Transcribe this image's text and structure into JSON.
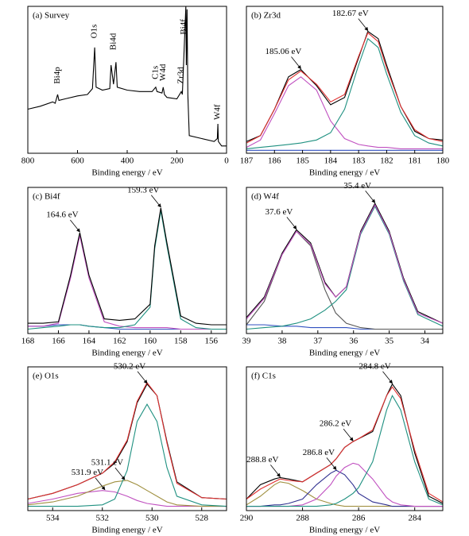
{
  "chart_data": [
    {
      "type": "line",
      "title": "(a) Survey",
      "xlabel": "Binding energy / eV",
      "xlim": [
        800,
        0
      ],
      "ylim": [
        0,
        100
      ],
      "xticks": [
        800,
        600,
        400,
        200,
        0
      ],
      "x": [
        800,
        750,
        700,
        690,
        680,
        675,
        650,
        600,
        560,
        540,
        531,
        525,
        500,
        470,
        465,
        455,
        445,
        440,
        400,
        350,
        300,
        285,
        280,
        260,
        255,
        250,
        240,
        200,
        182,
        178,
        164,
        162,
        159,
        156,
        150,
        100,
        50,
        37,
        35,
        33,
        20,
        0
      ],
      "series": [
        {
          "color": "#000000",
          "values": [
            30,
            32,
            35,
            34,
            40,
            36,
            37,
            39,
            40,
            44,
            72,
            45,
            43,
            44,
            60,
            47,
            62,
            45,
            43,
            42,
            42,
            45,
            42,
            41,
            45,
            40,
            38,
            37,
            42,
            40,
            100,
            60,
            98,
            40,
            12,
            10,
            8,
            10,
            20,
            8,
            5,
            5
          ]
        }
      ],
      "peak_labels": [
        {
          "text": "Bi4p",
          "x": 680,
          "y": 53
        },
        {
          "text": "O1s",
          "x": 531,
          "y": 83
        },
        {
          "text": "Bi4d",
          "x": 455,
          "y": 76
        },
        {
          "text": "C1s",
          "x": 285,
          "y": 55
        },
        {
          "text": "W4d",
          "x": 255,
          "y": 55
        },
        {
          "text": "Zr3d",
          "x": 182,
          "y": 53
        },
        {
          "text": "Bi4f",
          "x": 172,
          "y": 86
        },
        {
          "text": "W4f",
          "x": 35,
          "y": 28
        }
      ]
    },
    {
      "type": "line",
      "title": "(b) Zr3d",
      "xlabel": "Binding energy / eV",
      "xlim": [
        187,
        180
      ],
      "ylim": [
        0,
        100
      ],
      "xticks": [
        187,
        186,
        185,
        184,
        183,
        182,
        181,
        180
      ],
      "x": [
        187,
        186.5,
        186,
        185.5,
        185.06,
        184.5,
        184,
        183.5,
        183,
        182.67,
        182.3,
        182,
        181.5,
        181,
        180.5,
        180
      ],
      "series": [
        {
          "color": "#3050c0",
          "values": [
            2,
            2,
            2,
            2,
            2,
            2,
            2,
            2,
            2,
            2,
            2,
            2,
            2,
            2,
            2,
            2
          ]
        },
        {
          "color": "#c050c0",
          "values": [
            4,
            9,
            27,
            46,
            52,
            43,
            22,
            10,
            6,
            5,
            4,
            4,
            3,
            3,
            3,
            3
          ]
        },
        {
          "color": "#1e9080",
          "values": [
            3,
            4,
            5,
            6,
            7,
            9,
            14,
            30,
            60,
            78,
            72,
            54,
            28,
            12,
            7,
            5
          ]
        },
        {
          "color": "#000000",
          "values": [
            8,
            12,
            30,
            52,
            57,
            46,
            33,
            38,
            65,
            83,
            78,
            60,
            32,
            15,
            10,
            9
          ]
        },
        {
          "color": "#e03030",
          "values": [
            7,
            12,
            30,
            50,
            56,
            47,
            35,
            40,
            66,
            82,
            76,
            58,
            32,
            16,
            10,
            8
          ]
        }
      ],
      "annotations": [
        {
          "text": "185.06 eV",
          "x": 185.06,
          "y": 57
        },
        {
          "text": "182.67 eV",
          "x": 182.67,
          "y": 83
        }
      ]
    },
    {
      "type": "line",
      "title": "(c) Bi4f",
      "xlabel": "Binding energy / eV",
      "xlim": [
        168,
        155
      ],
      "ylim": [
        0,
        100
      ],
      "xticks": [
        168,
        166,
        164,
        162,
        160,
        158,
        156
      ],
      "x": [
        168,
        167,
        166,
        165.2,
        164.6,
        164,
        163,
        162,
        161,
        160,
        159.7,
        159.3,
        158.9,
        158,
        157,
        156,
        155
      ],
      "series": [
        {
          "color": "#3050c0",
          "values": [
            5,
            5,
            6,
            6,
            6,
            5,
            4,
            3,
            3,
            3,
            3,
            3,
            3,
            3,
            3,
            3,
            3
          ]
        },
        {
          "color": "#c050c0",
          "values": [
            5,
            5,
            7,
            38,
            67,
            38,
            8,
            5,
            4,
            4,
            4,
            4,
            4,
            3,
            3,
            3,
            3
          ]
        },
        {
          "color": "#1e9080",
          "values": [
            3,
            4,
            5,
            6,
            6,
            5,
            4,
            4,
            6,
            18,
            58,
            84,
            60,
            10,
            4,
            3,
            3
          ]
        },
        {
          "color": "#000000",
          "values": [
            7,
            7,
            8,
            40,
            69,
            40,
            10,
            9,
            10,
            20,
            60,
            86,
            62,
            12,
            7,
            6,
            6
          ]
        }
      ],
      "annotations": [
        {
          "text": "164.6 eV",
          "x": 164.6,
          "y": 69
        },
        {
          "text": "159.3 eV",
          "x": 159.3,
          "y": 86
        }
      ]
    },
    {
      "type": "line",
      "title": "(d) W4f",
      "xlabel": "Binding energy / eV",
      "xlim": [
        39,
        33.5
      ],
      "ylim": [
        0,
        100
      ],
      "xticks": [
        39,
        38,
        37,
        36,
        35,
        34
      ],
      "x": [
        39,
        38.5,
        38,
        37.6,
        37.2,
        36.8,
        36.5,
        36.2,
        35.8,
        35.4,
        35,
        34.6,
        34.2,
        33.5
      ],
      "series": [
        {
          "color": "#3050c0",
          "values": [
            6,
            6,
            5,
            5,
            4,
            4,
            4,
            4,
            3,
            3,
            3,
            3,
            3,
            3
          ]
        },
        {
          "color": "#555555",
          "values": [
            6,
            22,
            54,
            70,
            60,
            30,
            14,
            7,
            4,
            3,
            3,
            3,
            3,
            3
          ]
        },
        {
          "color": "#1e9080",
          "values": [
            3,
            4,
            5,
            7,
            10,
            16,
            22,
            30,
            68,
            87,
            68,
            36,
            13,
            5
          ]
        },
        {
          "color": "#000000",
          "values": [
            11,
            25,
            55,
            71,
            62,
            35,
            25,
            32,
            70,
            89,
            70,
            38,
            15,
            7
          ]
        },
        {
          "color": "#c050c0",
          "values": [
            10,
            24,
            54,
            70,
            61,
            34,
            25,
            32,
            69,
            88,
            69,
            37,
            14,
            7
          ]
        }
      ],
      "annotations": [
        {
          "text": "37.6 eV",
          "x": 37.6,
          "y": 71
        },
        {
          "text": "35.4 eV",
          "x": 35.4,
          "y": 89
        }
      ]
    },
    {
      "type": "line",
      "title": "(e) O1s",
      "xlabel": "Binding energy / eV",
      "xlim": [
        535,
        527
      ],
      "ylim": [
        0,
        100
      ],
      "xticks": [
        534,
        532,
        530,
        528
      ],
      "x": [
        535,
        534,
        533,
        532,
        531.5,
        531,
        530.6,
        530.2,
        529.8,
        529.4,
        529,
        528,
        527
      ],
      "series": [
        {
          "color": "#c050c0",
          "values": [
            5,
            8,
            12,
            14,
            13,
            10,
            7,
            5,
            4,
            3,
            3,
            3,
            3
          ]
        },
        {
          "color": "#a09040",
          "values": [
            4,
            6,
            10,
            17,
            20,
            21,
            18,
            14,
            10,
            6,
            4,
            3,
            3
          ]
        },
        {
          "color": "#1e9080",
          "values": [
            3,
            3,
            3,
            4,
            8,
            28,
            62,
            74,
            62,
            30,
            10,
            4,
            3
          ]
        },
        {
          "color": "#000000",
          "values": [
            8,
            12,
            18,
            26,
            33,
            48,
            75,
            88,
            80,
            48,
            20,
            9,
            8
          ]
        },
        {
          "color": "#e03030",
          "values": [
            8,
            12,
            18,
            26,
            34,
            49,
            76,
            89,
            80,
            47,
            19,
            9,
            8
          ]
        }
      ],
      "annotations": [
        {
          "text": "530.2 eV",
          "x": 530.2,
          "y": 88
        },
        {
          "text": "531.1 eV",
          "x": 531.1,
          "y": 21
        },
        {
          "text": "531.9 eV",
          "x": 531.9,
          "y": 14
        }
      ]
    },
    {
      "type": "line",
      "title": "(f) C1s",
      "xlabel": "Binding energy / eV",
      "xlim": [
        290,
        283
      ],
      "ylim": [
        0,
        100
      ],
      "xticks": [
        290,
        288,
        286,
        284
      ],
      "x": [
        290,
        289.5,
        289,
        288.8,
        288.5,
        288,
        287.5,
        287,
        286.8,
        286.5,
        286.2,
        286,
        285.5,
        285,
        284.8,
        284.5,
        284,
        283.5,
        283
      ],
      "series": [
        {
          "color": "#a09040",
          "values": [
            4,
            10,
            18,
            20,
            19,
            14,
            8,
            5,
            4,
            3,
            3,
            3,
            3,
            3,
            3,
            3,
            3,
            3,
            3
          ]
        },
        {
          "color": "#303090",
          "values": [
            3,
            3,
            4,
            4,
            5,
            8,
            18,
            26,
            28,
            25,
            18,
            12,
            6,
            4,
            3,
            3,
            3,
            3,
            3
          ]
        },
        {
          "color": "#c050c0",
          "values": [
            3,
            3,
            3,
            3,
            3,
            4,
            8,
            18,
            24,
            30,
            33,
            32,
            22,
            9,
            6,
            4,
            3,
            3,
            3
          ]
        },
        {
          "color": "#1e9080",
          "values": [
            3,
            3,
            3,
            3,
            3,
            3,
            3,
            4,
            5,
            8,
            12,
            16,
            34,
            70,
            80,
            70,
            34,
            8,
            4
          ]
        },
        {
          "color": "#000000",
          "values": [
            8,
            18,
            22,
            23,
            22,
            20,
            26,
            32,
            36,
            44,
            48,
            50,
            55,
            80,
            88,
            80,
            40,
            10,
            5
          ]
        },
        {
          "color": "#e03030",
          "values": [
            8,
            15,
            20,
            22,
            21,
            20,
            26,
            32,
            36,
            44,
            48,
            50,
            56,
            80,
            86,
            78,
            42,
            12,
            6
          ]
        }
      ],
      "annotations": [
        {
          "text": "288.8 eV",
          "x": 288.8,
          "y": 23
        },
        {
          "text": "286.8 eV",
          "x": 286.8,
          "y": 28
        },
        {
          "text": "286.2 eV",
          "x": 286.2,
          "y": 48
        },
        {
          "text": "284.8 eV",
          "x": 284.8,
          "y": 88
        }
      ]
    }
  ]
}
